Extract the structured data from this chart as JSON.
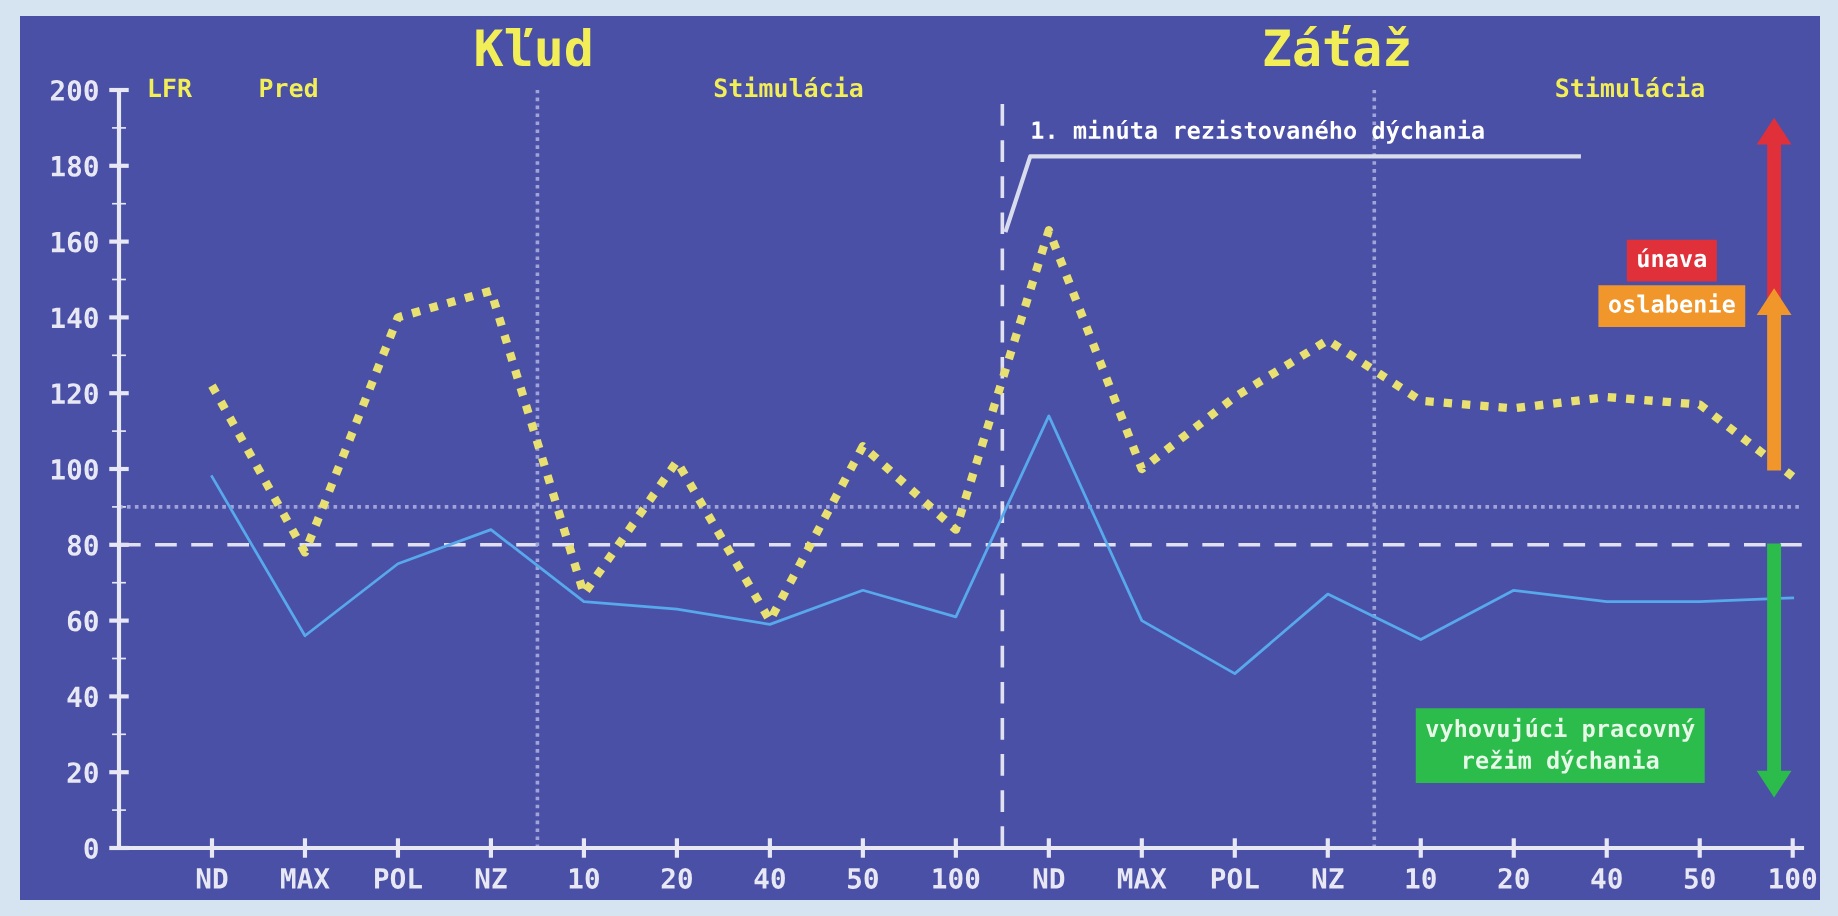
{
  "chart_data": {
    "type": "line",
    "ylabel": "LFR",
    "categories": [
      "ND",
      "MAX",
      "POL",
      "NZ",
      "10",
      "20",
      "40",
      "50",
      "100",
      "ND",
      "MAX",
      "POL",
      "NZ",
      "10",
      "20",
      "40",
      "50",
      "100"
    ],
    "series": [
      {
        "color": "#e8e070",
        "line_style": "dotted",
        "values": [
          122,
          78,
          140,
          147,
          67,
          102,
          60,
          106,
          84,
          163,
          100,
          119,
          134,
          118,
          116,
          119,
          117,
          98
        ]
      },
      {
        "color": "#58a8ec",
        "line_style": "solid",
        "values": [
          98,
          56,
          75,
          84,
          65,
          63,
          59,
          68,
          61,
          114,
          60,
          46,
          67,
          55,
          68,
          65,
          65,
          66
        ]
      }
    ],
    "ylim": [
      0,
      200
    ],
    "yticks": [
      0,
      20,
      40,
      60,
      80,
      100,
      120,
      140,
      160,
      180,
      200
    ],
    "grid": false,
    "legend": false,
    "marker": "none",
    "ref_lines": [
      {
        "axis": "y",
        "value": 80,
        "color": "#e0e0f0",
        "line_style": "dashed"
      },
      {
        "axis": "y",
        "value": 90,
        "color": "#a0a4d8",
        "line_style": "dotted"
      }
    ],
    "annotations": [
      "Kľud",
      "Záťaž",
      "Pred",
      "Stimulácia",
      "Stimulácia",
      "1. minúta rezistovaného dýchania",
      "únava",
      "oslabenie",
      "vyhovujúci pracovný\nrežim dýchania"
    ]
  }
}
